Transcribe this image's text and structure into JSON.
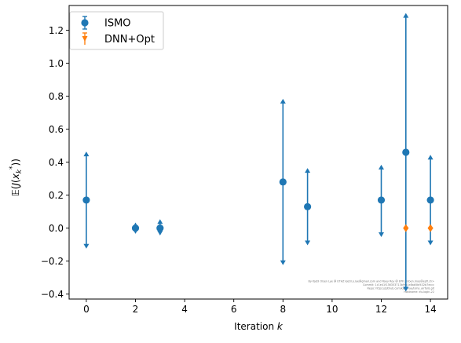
{
  "chart_data": {
    "type": "scatter",
    "xlabel": "Iteration k",
    "ylabel": "E(J(x_k*))",
    "xlim": [
      -0.7,
      14.7
    ],
    "ylim": [
      -0.43,
      1.35
    ],
    "xticks": [
      0,
      2,
      4,
      6,
      8,
      10,
      12,
      14
    ],
    "yticks": [
      -0.4,
      -0.2,
      0.0,
      0.2,
      0.4,
      0.6,
      0.8,
      1.0,
      1.2
    ],
    "ytick_labels": [
      "−0.4",
      "−0.2",
      "0.0",
      "0.2",
      "0.4",
      "0.6",
      "0.8",
      "1.0",
      "1.2"
    ],
    "grid": false,
    "legend_position": "top-left",
    "series": [
      {
        "name": "ISMO",
        "color": "#1f77b4",
        "marker": "circle",
        "points": [
          {
            "x": 0,
            "y": 0.17,
            "lower": -0.11,
            "upper": 0.45
          },
          {
            "x": 2,
            "y": 0.0,
            "lower": -0.02,
            "upper": 0.02
          },
          {
            "x": 3,
            "y": 0.0,
            "lower": -0.03,
            "upper": 0.04
          },
          {
            "x": 8,
            "y": 0.28,
            "lower": -0.21,
            "upper": 0.77
          },
          {
            "x": 9,
            "y": 0.13,
            "lower": -0.09,
            "upper": 0.35
          },
          {
            "x": 12,
            "y": 0.17,
            "lower": -0.04,
            "upper": 0.37
          },
          {
            "x": 13,
            "y": 0.46,
            "lower": -0.37,
            "upper": 1.29
          },
          {
            "x": 14,
            "y": 0.17,
            "lower": -0.09,
            "upper": 0.43
          }
        ]
      },
      {
        "name": "DNN+Opt",
        "color": "#ff7f0e",
        "marker": "diamond",
        "points": [
          {
            "x": 13,
            "y": 0.0,
            "lower": 0.0,
            "upper": 0.0
          },
          {
            "x": 14,
            "y": 0.0,
            "lower": 0.0,
            "upper": 0.0
          }
        ]
      }
    ]
  },
  "watermark": {
    "lines": [
      "By Kjetil Olsen Lye @ ETHZ kjetil.o.lye@gmail.com and Roey Roy @ EPFL roben.moe@epfl.ch>",
      "Commit: 1c1e41f136353713b9fb1e8ab5bf432b7eccc",
      "Repo: https://github.com/kjetil-lye/ismo_airfoils.git",
      "Hostname: eu-login-22"
    ]
  }
}
